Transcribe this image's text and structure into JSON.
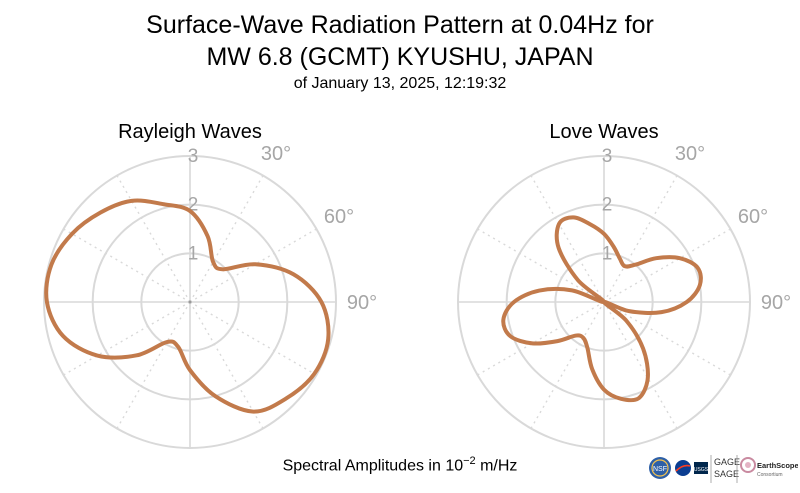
{
  "header": {
    "title_line1": "Surface-Wave Radiation Pattern at 0.04Hz for",
    "title_line2": "MW 6.8 (GCMT) KYUSHU, JAPAN",
    "subtitle": "of January 13, 2025, 12:19:32"
  },
  "footer": {
    "label_prefix": "Spectral Amplitudes in 10",
    "label_exponent": "−2",
    "label_suffix": " m/Hz"
  },
  "logos": {
    "nsf": "NSF",
    "usgs": "USGS",
    "gage": "GAGE",
    "sage": "SAGE",
    "earthscope": "EarthScope",
    "consortium": "Consortium"
  },
  "colors": {
    "pattern": "#c27a4b",
    "grid": "#d9d9d9",
    "tick_text": "#a6a6a6"
  },
  "chart_data": [
    {
      "type": "polar-line",
      "title": "Rayleigh Waves",
      "r_ticks": [
        1,
        2,
        3
      ],
      "r_max": 3,
      "theta_labels": [
        "30°",
        "60°",
        "90°"
      ],
      "theta_label_angles": [
        30,
        60,
        90
      ],
      "theta_zero": "north",
      "theta_direction": "clockwise",
      "series": [
        {
          "theta_deg": [
            0,
            15,
            30,
            45,
            60,
            75,
            90,
            105,
            120,
            135,
            150,
            165,
            180,
            195,
            210,
            225,
            240,
            255,
            270,
            285,
            300,
            315,
            330,
            345
          ],
          "r": [
            1.87,
            1.4,
            0.95,
            0.95,
            1.55,
            2.2,
            2.7,
            2.94,
            2.95,
            2.8,
            2.6,
            2.0,
            1.4,
            0.95,
            0.95,
            1.55,
            2.2,
            2.7,
            2.94,
            2.95,
            2.8,
            2.6,
            2.4,
            2.08
          ]
        }
      ]
    },
    {
      "type": "polar-line",
      "title": "Love Waves",
      "r_ticks": [
        1,
        2,
        3
      ],
      "r_max": 3,
      "theta_labels": [
        "30°",
        "60°",
        "90°"
      ],
      "theta_label_angles": [
        30,
        60,
        90
      ],
      "theta_zero": "north",
      "theta_direction": "clockwise",
      "series": [
        {
          "theta_deg": [
            0,
            10,
            20,
            30,
            40,
            50,
            60,
            70,
            80,
            90,
            100,
            110,
            120,
            130,
            140,
            150,
            160,
            170,
            180,
            190,
            200,
            210,
            220,
            230,
            240,
            250,
            260,
            270,
            280,
            290,
            300,
            310,
            320,
            330,
            340,
            350
          ],
          "r": [
            1.4,
            1.15,
            0.95,
            0.85,
            1.0,
            1.4,
            1.8,
            2.05,
            2.0,
            1.7,
            1.2,
            0.55,
            0.0,
            0.6,
            1.25,
            1.8,
            2.1,
            2.02,
            1.8,
            1.4,
            1.0,
            0.85,
            0.9,
            1.25,
            1.7,
            2.05,
            2.1,
            1.85,
            1.35,
            0.7,
            0.0,
            0.7,
            1.45,
            1.85,
            1.85,
            1.62
          ]
        }
      ]
    }
  ]
}
